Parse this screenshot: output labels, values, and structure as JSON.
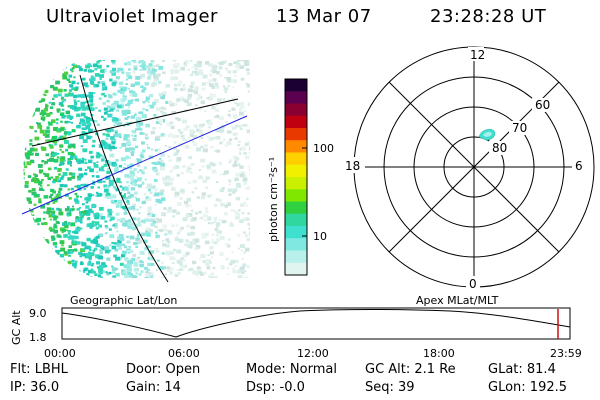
{
  "header": {
    "app_title": "Ultraviolet Imager",
    "date": "13 Mar 07",
    "time": "23:28:28 UT"
  },
  "colorbar": {
    "unit_label": "photon cm⁻²s⁻¹",
    "tick_labels": [
      "100",
      "10"
    ],
    "colors": [
      "#1a0033",
      "#5a004f",
      "#8a0030",
      "#c00010",
      "#e83a00",
      "#ff8a00",
      "#ffd000",
      "#f0f000",
      "#c8f000",
      "#80e800",
      "#30d040",
      "#30d8a0",
      "#40e0d0",
      "#80e8e0",
      "#b8f0ec",
      "#e0f4f0"
    ]
  },
  "polar_plot": {
    "clock_labels": [
      "12",
      "18",
      "6",
      "0"
    ],
    "ring_labels": [
      "60",
      "70",
      "80"
    ]
  },
  "timeline": {
    "left_title": "Geographic Lat/Lon",
    "right_title": "Apex MLat/MLT",
    "ylabel": "GC Alt",
    "ytick_labels": [
      "9.0",
      "1.8"
    ],
    "xtick_labels": [
      "00:00",
      "06:00",
      "12:00",
      "18:00",
      "23:59"
    ],
    "marker_color": "#d01010"
  },
  "info": {
    "flt": "Flt: LBHL",
    "door": "Door: Open",
    "mode": "Mode: Normal",
    "gc_alt": "GC Alt: 2.1 Re",
    "glat": "GLat: 81.4",
    "ip": "IP: 36.0",
    "gain": "Gain: 14",
    "dsp": "Dsp:   -0.0",
    "seq": "Seq: 39",
    "glon": "GLon: 192.5"
  }
}
